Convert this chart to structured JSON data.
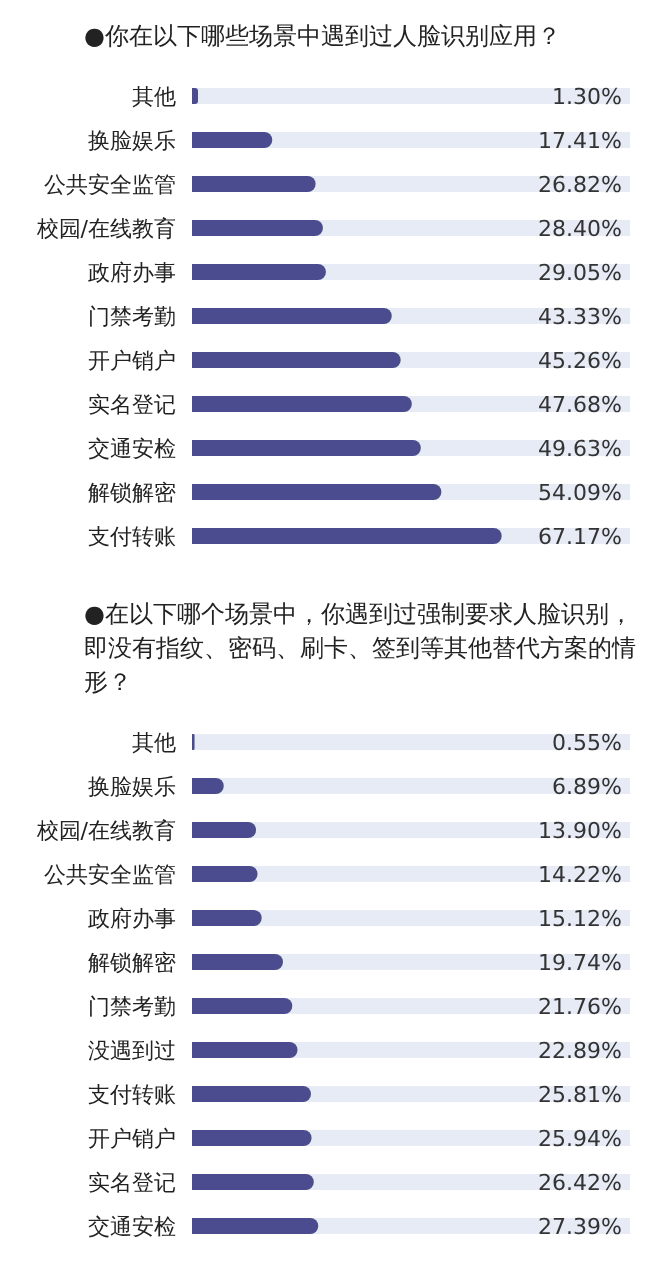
{
  "chart_data": [
    {
      "type": "bar",
      "orientation": "horizontal",
      "title": "●你在以下哪些场景中遇到过人脸识别应用？",
      "categories": [
        "其他",
        "换脸娱乐",
        "公共安全监管",
        "校园/在线教育",
        "政府办事",
        "门禁考勤",
        "开户销户",
        "实名登记",
        "交通安检",
        "解锁解密",
        "支付转账"
      ],
      "values": [
        1.3,
        17.41,
        26.82,
        28.4,
        29.05,
        43.33,
        45.26,
        47.68,
        49.63,
        54.09,
        67.17
      ],
      "value_labels": [
        "1.30%",
        "17.41%",
        "26.82%",
        "28.40%",
        "29.05%",
        "43.33%",
        "45.26%",
        "47.68%",
        "49.63%",
        "54.09%",
        "67.17%"
      ],
      "color": "#4b4b8f",
      "xlim": [
        0,
        95
      ],
      "tick_labels": "y",
      "grid": false
    },
    {
      "type": "bar",
      "orientation": "horizontal",
      "title": "●在以下哪个场景中，你遇到过强制要求人脸识别，即没有指纹、密码、刷卡、签到等其他替代方案的情形？",
      "categories": [
        "其他",
        "换脸娱乐",
        "校园/在线教育",
        "公共安全监管",
        "政府办事",
        "解锁解密",
        "门禁考勤",
        "没遇到过",
        "支付转账",
        "开户销户",
        "实名登记",
        "交通安检"
      ],
      "values": [
        0.55,
        6.89,
        13.9,
        14.22,
        15.12,
        19.74,
        21.76,
        22.89,
        25.81,
        25.94,
        26.42,
        27.39
      ],
      "value_labels": [
        "0.55%",
        "6.89%",
        "13.90%",
        "14.22%",
        "15.12%",
        "19.74%",
        "21.76%",
        "22.89%",
        "25.81%",
        "25.94%",
        "26.42%",
        "27.39%"
      ],
      "color": "#4b4b8f",
      "xlim": [
        0,
        95
      ],
      "tick_labels": "y",
      "grid": false
    }
  ]
}
